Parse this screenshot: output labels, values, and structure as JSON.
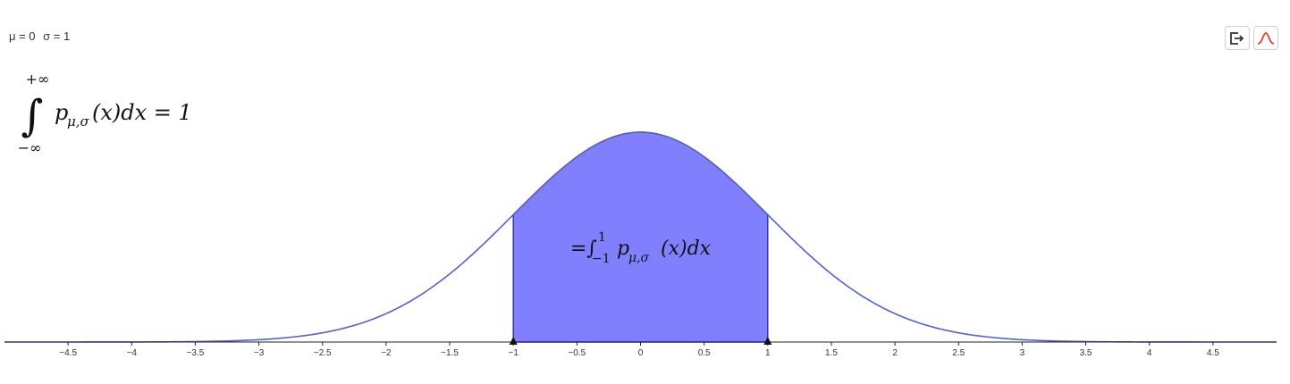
{
  "params": {
    "mu_label": "μ = 0",
    "sigma_label": "σ = 1"
  },
  "formula_total": {
    "upper": "+∞",
    "lower": "−∞",
    "density": "p",
    "density_sub": "μ,σ",
    "integrand_tail": "(x)dx = 1"
  },
  "formula_area": {
    "prefix": "=∫",
    "upper": "1",
    "lower": "−1",
    "density": "p",
    "density_sub": "μ,σ",
    "integrand_tail": "(x)dx"
  },
  "toolbar": {
    "export_icon": "export-icon",
    "curve_icon": "bell-curve-icon"
  },
  "colors": {
    "curve": "#5560cc",
    "fill": "#8080ff",
    "fill_border": "#2b2bb8",
    "axis": "#222222",
    "curve_button": "#e0443c"
  },
  "chart_data": {
    "type": "area",
    "function": "normal_pdf",
    "mu": 0,
    "sigma": 1,
    "xlim": [
      -5,
      5
    ],
    "ylim": [
      0,
      0.4
    ],
    "shaded_interval": [
      -1,
      1
    ],
    "interval_markers": [
      -1,
      1
    ],
    "x_ticks": [
      "−4.5",
      "−4",
      "−3.5",
      "−3",
      "−2.5",
      "−2",
      "−1.5",
      "−1",
      "−0.5",
      "0",
      "0.5",
      "1",
      "1.5",
      "2",
      "2.5",
      "3",
      "3.5",
      "4",
      "4.5"
    ],
    "tick_values": [
      -4.5,
      -4,
      -3.5,
      -3,
      -2.5,
      -2,
      -1.5,
      -1,
      -0.5,
      0,
      0.5,
      1,
      1.5,
      2,
      2.5,
      3,
      3.5,
      4,
      4.5
    ],
    "grid": false,
    "legend": "none"
  }
}
